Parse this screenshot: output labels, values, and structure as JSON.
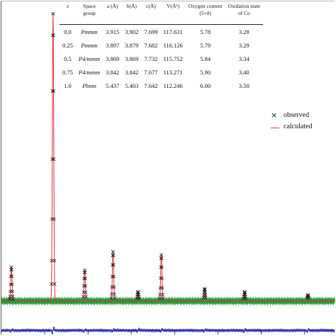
{
  "table": {
    "headers": [
      "x",
      "Space\ngroup",
      "a (Å)",
      "b(Å)",
      "c(Å)",
      "V(Å³)",
      "Oxygen content\n(5+δ)",
      "Oxidation state\nof Co"
    ],
    "rows": [
      [
        "0.0",
        "Pmmm",
        "3.915",
        "3.902",
        "7.699",
        "117.631",
        "5.78",
        "3.28"
      ],
      [
        "0.25",
        "Pmmm",
        "3.897",
        "3.879",
        "7.682",
        "116.126",
        "5.79",
        "3.29"
      ],
      [
        "0.5",
        "P4/mmm",
        "3.869",
        "3.869",
        "7.732",
        "115.752",
        "5.84",
        "3.34"
      ],
      [
        "0.75",
        "P4/mmm",
        "3.842",
        "3.842",
        "7.677",
        "113.271",
        "5.90",
        "3.40"
      ],
      [
        "1.0",
        "Pbnm",
        "5.437",
        "5.403",
        "7.642",
        "112.246",
        "6.00",
        "3.50"
      ]
    ]
  },
  "legend": {
    "observed_label": "observed",
    "calculated_label": "calculated",
    "observed_marker": "×"
  },
  "colors": {
    "observed": "#222222",
    "calculated": "#e0303a",
    "background_fit": "#2a9a3a",
    "difference": "#2b2bb0",
    "axis": "#555555"
  },
  "chart_data": {
    "type": "line",
    "xlim": [
      0,
      100
    ],
    "ylim": [
      0,
      100
    ],
    "baseline": 3.5,
    "difference_level": -6,
    "peaks": [
      {
        "x": 3.0,
        "height": 11
      },
      {
        "x": 15.5,
        "height": 93
      },
      {
        "x": 25.0,
        "height": 10
      },
      {
        "x": 33.5,
        "height": 16
      },
      {
        "x": 41.0,
        "height": 3
      },
      {
        "x": 48.0,
        "height": 15
      },
      {
        "x": 61.0,
        "height": 4
      },
      {
        "x": 73.0,
        "height": 3
      },
      {
        "x": 92.0,
        "height": 2
      }
    ]
  }
}
